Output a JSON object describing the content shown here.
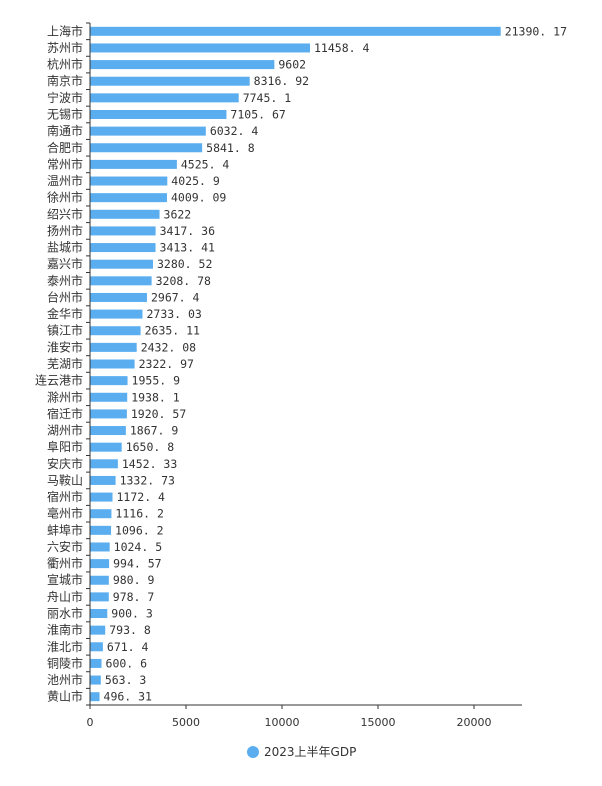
{
  "chart_data": {
    "type": "bar",
    "orientation": "horizontal",
    "categories": [
      "上海市",
      "苏州市",
      "杭州市",
      "南京市",
      "宁波市",
      "无锡市",
      "南通市",
      "合肥市",
      "常州市",
      "温州市",
      "徐州市",
      "绍兴市",
      "扬州市",
      "盐城市",
      "嘉兴市",
      "泰州市",
      "台州市",
      "金华市",
      "镇江市",
      "淮安市",
      "芜湖市",
      "连云港市",
      "滁州市",
      "宿迁市",
      "湖州市",
      "阜阳市",
      "安庆市",
      "马鞍山",
      "宿州市",
      "亳州市",
      "蚌埠市",
      "六安市",
      "衢州市",
      "宣城市",
      "舟山市",
      "丽水市",
      "淮南市",
      "淮北市",
      "铜陵市",
      "池州市",
      "黄山市"
    ],
    "values": [
      21390.17,
      11458.4,
      9602,
      8316.92,
      7745.1,
      7105.67,
      6032.4,
      5841.8,
      4525.4,
      4025.9,
      4009.09,
      3622,
      3417.36,
      3413.41,
      3280.52,
      3208.78,
      2967.4,
      2733.03,
      2635.11,
      2432.08,
      2322.97,
      1955.9,
      1938.1,
      1920.57,
      1867.9,
      1650.8,
      1452.33,
      1332.73,
      1172.4,
      1116.2,
      1096.2,
      1024.5,
      994.57,
      980.9,
      978.7,
      900.3,
      793.8,
      671.4,
      600.6,
      563.3,
      496.31
    ],
    "value_labels": [
      "21390. 17",
      "11458. 4",
      "9602",
      "8316. 92",
      "7745. 1",
      "7105. 67",
      "6032. 4",
      "5841. 8",
      "4525. 4",
      "4025. 9",
      "4009. 09",
      "3622",
      "3417. 36",
      "3413. 41",
      "3280. 52",
      "3208. 78",
      "2967. 4",
      "2733. 03",
      "2635. 11",
      "2432. 08",
      "2322. 97",
      "1955. 9",
      "1938. 1",
      "1920. 57",
      "1867. 9",
      "1650. 8",
      "1452. 33",
      "1332. 73",
      "1172. 4",
      "1116. 2",
      "1096. 2",
      "1024. 5",
      "994. 57",
      "980. 9",
      "978. 7",
      "900. 3",
      "793. 8",
      "671. 4",
      "600. 6",
      "563. 3",
      "496. 31"
    ],
    "series_name": "2023上半年GDP",
    "xlim": [
      0,
      22500
    ],
    "xticks": [
      0,
      5000,
      10000,
      15000,
      20000
    ],
    "grid": false,
    "legend": "bottom-center",
    "bar_color": "#5aaef0",
    "title": "",
    "xlabel": "",
    "ylabel": ""
  }
}
